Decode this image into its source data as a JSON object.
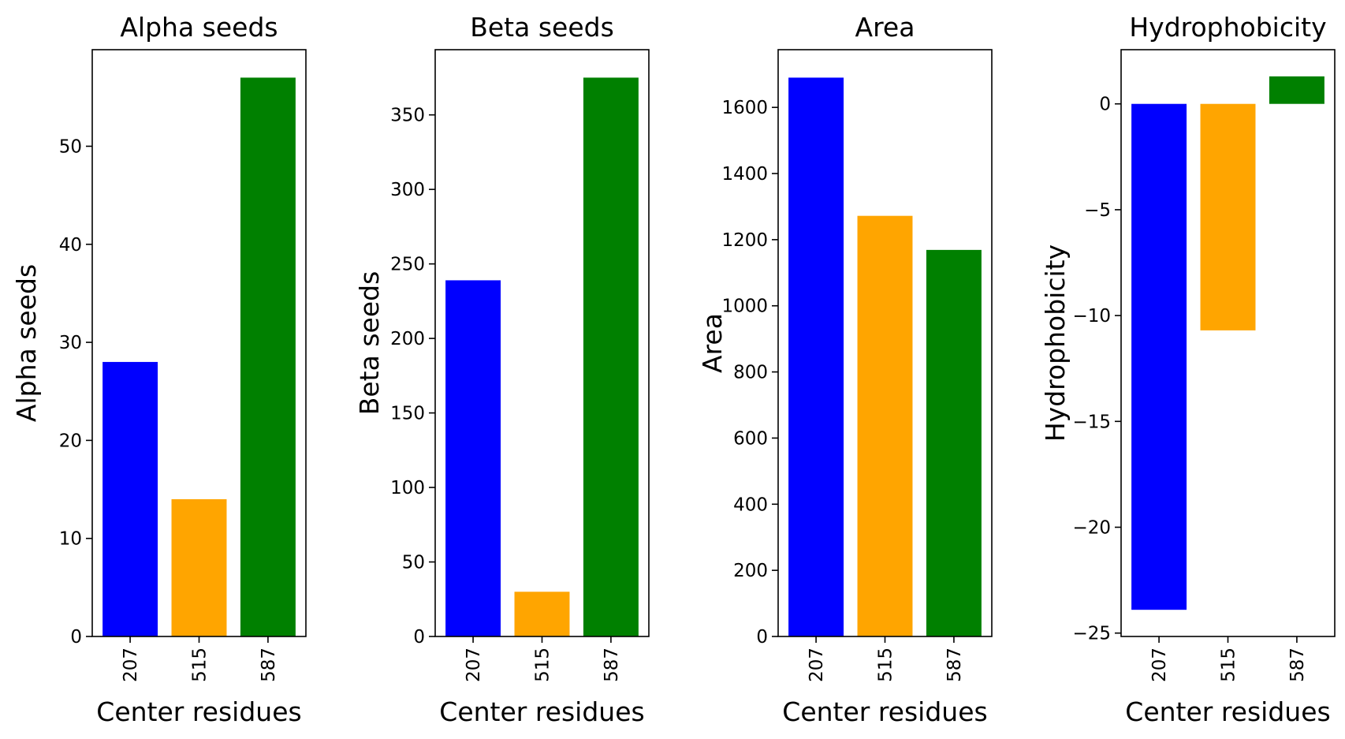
{
  "chart_data": [
    {
      "type": "bar",
      "title": "Alpha seeds",
      "xlabel": "Center residues",
      "ylabel": "Alpha seeds",
      "categories": [
        "207",
        "515",
        "587"
      ],
      "values": [
        28,
        14,
        57
      ],
      "colors": [
        "#0000ff",
        "#ffa500",
        "#008000"
      ],
      "ylim": [
        0,
        59.85
      ],
      "yticks": [
        0,
        10,
        20,
        30,
        40,
        50
      ]
    },
    {
      "type": "bar",
      "title": "Beta seeds",
      "xlabel": "Center residues",
      "ylabel": "Beta seeds",
      "categories": [
        "207",
        "515",
        "587"
      ],
      "values": [
        239,
        30,
        375
      ],
      "colors": [
        "#0000ff",
        "#ffa500",
        "#008000"
      ],
      "ylim": [
        0,
        393.75
      ],
      "yticks": [
        0,
        50,
        100,
        150,
        200,
        250,
        300,
        350
      ]
    },
    {
      "type": "bar",
      "title": "Area",
      "xlabel": "Center residues",
      "ylabel": "Area",
      "categories": [
        "207",
        "515",
        "587"
      ],
      "values": [
        1690,
        1272,
        1169
      ],
      "colors": [
        "#0000ff",
        "#ffa500",
        "#008000"
      ],
      "ylim": [
        0,
        1774.5
      ],
      "yticks": [
        0,
        200,
        400,
        600,
        800,
        1000,
        1200,
        1400,
        1600
      ]
    },
    {
      "type": "bar",
      "title": "Hydrophobicity",
      "xlabel": "Center residues",
      "ylabel": "Hydrophobicity",
      "categories": [
        "207",
        "515",
        "587"
      ],
      "values": [
        -23.9,
        -10.7,
        1.3
      ],
      "colors": [
        "#0000ff",
        "#ffa500",
        "#008000"
      ],
      "ylim": [
        -25.16,
        2.56
      ],
      "yticks": [
        0,
        -5,
        -10,
        -15,
        -20,
        -25
      ],
      "ytick_labels": [
        "0",
        "−5",
        "−10",
        "−15",
        "−20",
        "−25"
      ]
    }
  ]
}
